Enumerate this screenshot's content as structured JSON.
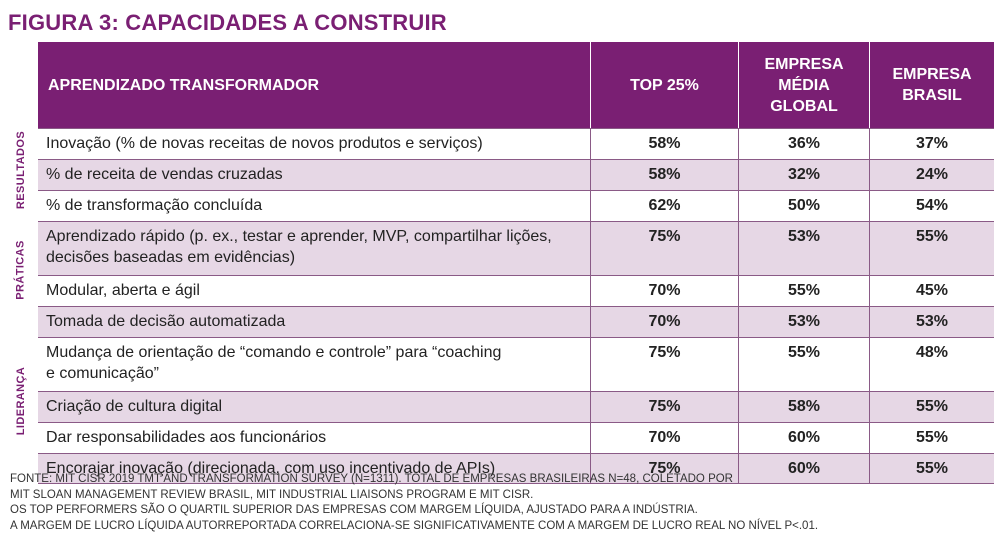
{
  "figure_title": "FIGURA 3: CAPACIDADES A CONSTRUIR",
  "header": {
    "col0": "APRENDIZADO TRANSFORMADOR",
    "col1": "TOP 25%",
    "col2_l1": "EMPRESA",
    "col2_l2": "MÉDIA",
    "col2_l3": "GLOBAL",
    "col3_l1": "EMPRESA",
    "col3_l2": "BRASIL"
  },
  "sections": {
    "resultados": "RESULTADOS",
    "praticas": "PRÁTICAS",
    "lideranca": "LIDERANÇA"
  },
  "rows": [
    {
      "label": "Inovação (% de novas receitas de novos produtos e serviços)",
      "top": "58%",
      "global": "36%",
      "brasil": "37%"
    },
    {
      "label": "% de receita de vendas cruzadas",
      "top": "58%",
      "global": "32%",
      "brasil": "24%"
    },
    {
      "label": "% de transformação concluída",
      "top": "62%",
      "global": "50%",
      "brasil": "54%"
    },
    {
      "label_l1": "Aprendizado rápido (p. ex., testar e aprender, MVP, compartilhar lições,",
      "label_l2": "decisões baseadas em evidências)",
      "top": "75%",
      "global": "53%",
      "brasil": "55%"
    },
    {
      "label": "Modular, aberta e ágil",
      "top": "70%",
      "global": "55%",
      "brasil": "45%"
    },
    {
      "label": "Tomada de decisão automatizada",
      "top": "70%",
      "global": "53%",
      "brasil": "53%"
    },
    {
      "label_l1": "Mudança de orientação de “comando e controle” para “coaching",
      "label_l2": "e comunicação”",
      "top": "75%",
      "global": "55%",
      "brasil": "48%"
    },
    {
      "label": "Criação de cultura digital",
      "top": "75%",
      "global": "58%",
      "brasil": "55%"
    },
    {
      "label": "Dar responsabilidades aos funcionários",
      "top": "70%",
      "global": "60%",
      "brasil": "55%"
    },
    {
      "label": "Encorajar inovação (direcionada, com uso incentivado de APIs)",
      "top": "75%",
      "global": "60%",
      "brasil": "55%"
    }
  ],
  "footer": {
    "line1": "FONTE: MIT CISR 2019 TMT AND TRANSFORMATION SURVEY (N=1311). TOTAL DE EMPRESAS BRASILEIRAS N=48, COLETADO POR",
    "line2": "MIT SLOAN MANAGEMENT REVIEW BRASIL, MIT INDUSTRIAL LIAISONS PROGRAM E MIT CISR.",
    "line3": "OS TOP PERFORMERS SÃO O QUARTIL SUPERIOR DAS EMPRESAS COM MARGEM LÍQUIDA, AJUSTADO PARA A INDÚSTRIA.",
    "line4": "A MARGEM DE LUCRO LÍQUIDA AUTORREPORTADA CORRELACIONA-SE SIGNIFICATIVAMENTE COM A MARGEM DE LUCRO REAL NO NÍVEL P<.01."
  }
}
